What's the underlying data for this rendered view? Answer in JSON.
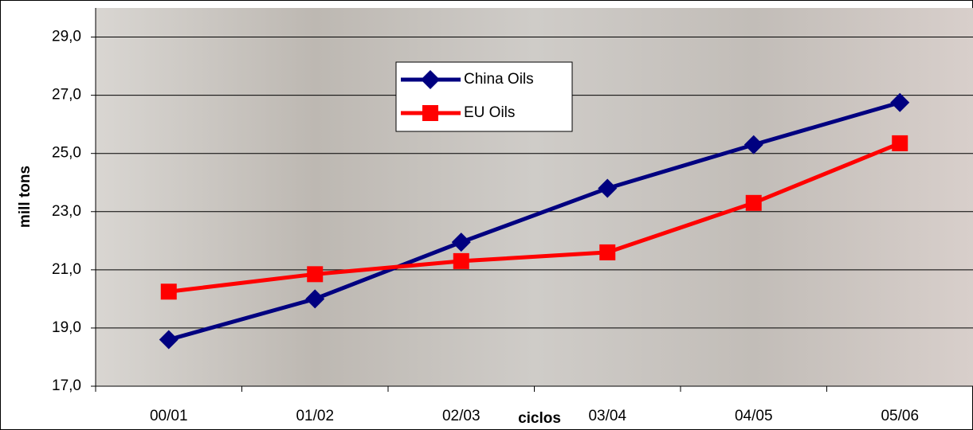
{
  "chart_data": {
    "type": "line",
    "x_label": "ciclos",
    "y_label": "mill tons",
    "categories": [
      "00/01",
      "01/02",
      "02/03",
      "03/04",
      "04/05",
      "05/06"
    ],
    "series": [
      {
        "name": "China Oils",
        "color": "#000080",
        "marker": "diamond",
        "values": [
          18.6,
          20.0,
          21.95,
          23.8,
          25.3,
          26.75
        ]
      },
      {
        "name": "EU Oils",
        "color": "#ff0000",
        "marker": "square",
        "values": [
          20.25,
          20.85,
          21.3,
          21.6,
          23.3,
          25.35
        ]
      }
    ],
    "ylim": [
      17,
      30
    ],
    "yticks": [
      {
        "value": 17,
        "label": "17,0"
      },
      {
        "value": 19,
        "label": "19,0"
      },
      {
        "value": 21,
        "label": "21,0"
      },
      {
        "value": 23,
        "label": "23,0"
      },
      {
        "value": 25,
        "label": "25,0"
      },
      {
        "value": 27,
        "label": "27,0"
      },
      {
        "value": 29,
        "label": "29,0"
      }
    ],
    "grid": true
  }
}
